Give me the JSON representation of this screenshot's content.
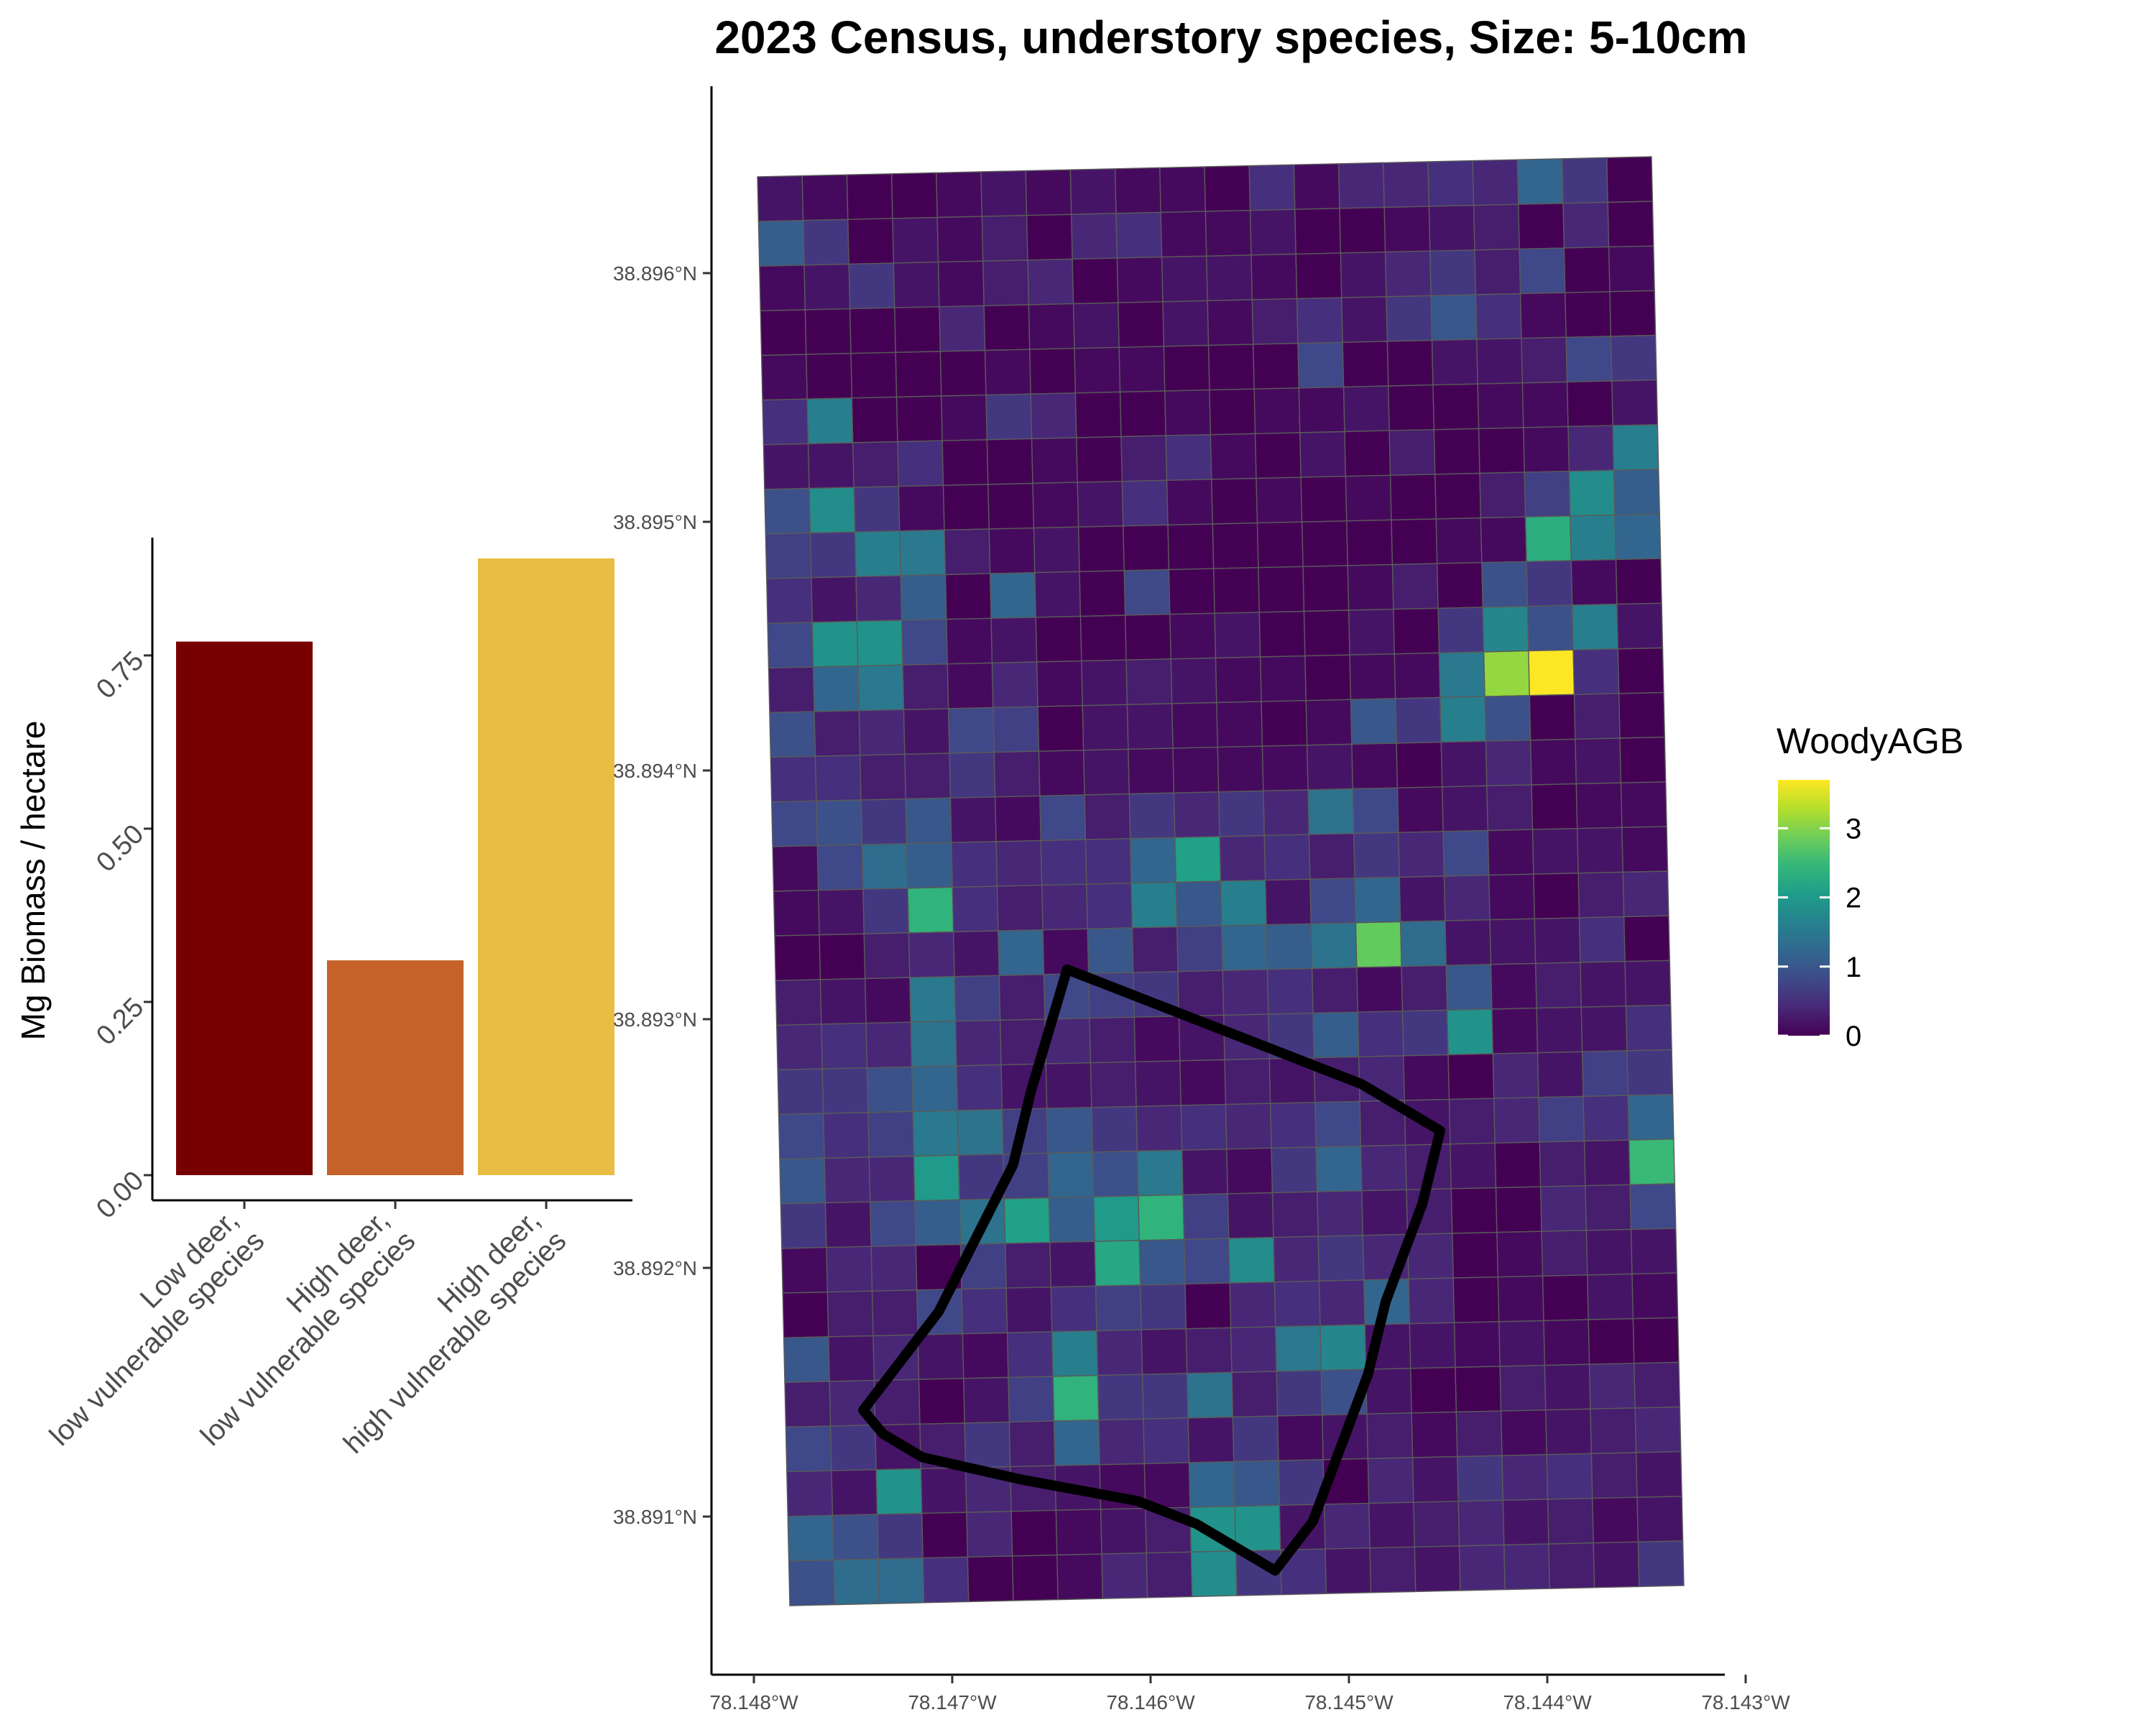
{
  "chart_data": [
    {
      "type": "bar",
      "title": "",
      "xlabel": "",
      "ylabel": "Mg Biomass / hectare",
      "ylim": [
        0,
        0.92
      ],
      "yticks": [
        "0.00",
        "0.25",
        "0.50",
        "0.75"
      ],
      "yticks_values": [
        0,
        0.25,
        0.5,
        0.75
      ],
      "categories": [
        {
          "line1": "Low deer,",
          "line2": "low vulnerable species",
          "color": "#770000",
          "value": 0.77
        },
        {
          "line1": "High deer,",
          "line2": "low vulnerable species",
          "color": "#c4622a",
          "value": 0.31
        },
        {
          "line1": "High deer,",
          "line2": "high vulnerable species",
          "color": "#e8bd42",
          "value": 0.89
        }
      ]
    },
    {
      "type": "heatmap",
      "title": "2023 Census, understory species, Size: 5-10cm",
      "x_tick_labels": [
        "78.148°W",
        "78.147°W",
        "78.146°W",
        "78.145°W",
        "78.144°W",
        "78.143°W"
      ],
      "x_tick_values": [
        -78.148,
        -78.147,
        -78.146,
        -78.145,
        -78.144,
        -78.143
      ],
      "y_tick_labels": [
        "38.896°N",
        "38.895°N",
        "38.894°N",
        "38.893°N",
        "38.892°N",
        "38.891°N"
      ],
      "y_tick_values": [
        38.896,
        38.895,
        38.894,
        38.893,
        38.892,
        38.891
      ],
      "legend": {
        "title": "WoodyAGB",
        "ticks": [
          "0",
          "1",
          "2",
          "3"
        ],
        "ticks_values": [
          0,
          1,
          2,
          3
        ],
        "range": [
          0,
          3.7
        ],
        "palette": "viridis",
        "placement": "right"
      },
      "grid": {
        "cols": 20,
        "rows": 32,
        "lon_range": [
          -78.1477,
          -78.1431
        ],
        "lat_range": [
          38.8905,
          38.8964
        ],
        "values": [
          [
            0.2,
            0.1,
            0,
            0,
            0.1,
            0.2,
            0.1,
            0.2,
            0.1,
            0.1,
            0,
            0.5,
            0.1,
            0.4,
            0.4,
            0.5,
            0.4,
            1.2,
            0.6,
            0
          ],
          [
            1.1,
            0.6,
            0,
            0.2,
            0.1,
            0.3,
            0,
            0.4,
            0.5,
            0.1,
            0.1,
            0.2,
            0,
            0,
            0.1,
            0.2,
            0.3,
            0,
            0.4,
            0
          ],
          [
            0.1,
            0.2,
            0.6,
            0.2,
            0.1,
            0.3,
            0.4,
            0,
            0.1,
            0.2,
            0.2,
            0.1,
            0,
            0.2,
            0.4,
            0.6,
            0.3,
            0.8,
            0,
            0.1
          ],
          [
            0,
            0,
            0,
            0,
            0.4,
            0,
            0.1,
            0.2,
            0,
            0.2,
            0.1,
            0.3,
            0.5,
            0.2,
            0.6,
            1.0,
            0.5,
            0.1,
            0,
            0
          ],
          [
            0.1,
            0,
            0,
            0,
            0,
            0.1,
            0,
            0.1,
            0.1,
            0,
            0,
            0,
            0.8,
            0,
            0,
            0.2,
            0.2,
            0.3,
            0.8,
            0.6
          ],
          [
            0.5,
            1.6,
            0,
            0,
            0.1,
            0.6,
            0.4,
            0,
            0,
            0.1,
            0,
            0.1,
            0.1,
            0.2,
            0,
            0,
            0.1,
            0.1,
            0,
            0.2
          ],
          [
            0.2,
            0.2,
            0.3,
            0.5,
            0,
            0,
            0.1,
            0,
            0.3,
            0.5,
            0.1,
            0,
            0.2,
            0,
            0.3,
            0,
            0,
            0.1,
            0.4,
            1.6
          ],
          [
            0.9,
            1.8,
            0.6,
            0.1,
            0,
            0,
            0.1,
            0.2,
            0.5,
            0.1,
            0,
            0.1,
            0,
            0.1,
            0,
            0,
            0.3,
            0.7,
            1.8,
            1.1
          ],
          [
            0.7,
            0.6,
            1.6,
            1.5,
            0.3,
            0.1,
            0.2,
            0,
            0,
            0,
            0,
            0,
            0,
            0,
            0,
            0.1,
            0.1,
            2.3,
            1.6,
            1.2
          ],
          [
            0.5,
            0.2,
            0.4,
            1.1,
            0,
            1.2,
            0.2,
            0,
            0.8,
            0,
            0,
            0,
            0,
            0.1,
            0.3,
            0,
            0.9,
            0.6,
            0.1,
            0
          ],
          [
            0.8,
            1.9,
            1.9,
            0.8,
            0.1,
            0.2,
            0,
            0,
            0,
            0.1,
            0.2,
            0,
            0,
            0.2,
            0,
            0.6,
            1.7,
            0.9,
            1.6,
            0.2
          ],
          [
            0.3,
            1.2,
            1.5,
            0.3,
            0.1,
            0.4,
            0.1,
            0.2,
            0.3,
            0.2,
            0.1,
            0.1,
            0,
            0.1,
            0.1,
            1.5,
            3.1,
            3.7,
            0.5,
            0
          ],
          [
            0.9,
            0.3,
            0.4,
            0.2,
            0.8,
            0.7,
            0,
            0.2,
            0.2,
            0.1,
            0.1,
            0,
            0.1,
            1.0,
            0.6,
            1.6,
            0.9,
            0,
            0.3,
            0
          ],
          [
            0.5,
            0.5,
            0.3,
            0.3,
            0.6,
            0.3,
            0.1,
            0.2,
            0.1,
            0.1,
            0.1,
            0.1,
            0.2,
            0.1,
            0,
            0.2,
            0.4,
            0.1,
            0.2,
            0
          ],
          [
            0.8,
            0.9,
            0.6,
            1.0,
            0.2,
            0.1,
            0.8,
            0.3,
            0.6,
            0.4,
            0.6,
            0.4,
            1.4,
            0.8,
            0.1,
            0.2,
            0.3,
            0,
            0.1,
            0.1
          ],
          [
            0.1,
            0.8,
            1.3,
            1.1,
            0.5,
            0.4,
            0.5,
            0.5,
            1.2,
            2.1,
            0.4,
            0.5,
            0.3,
            0.6,
            0.4,
            0.8,
            0.1,
            0.2,
            0.2,
            0.1
          ],
          [
            0.1,
            0.2,
            0.6,
            2.4,
            0.5,
            0.3,
            0.4,
            0.5,
            1.6,
            1.0,
            1.6,
            0.2,
            0.8,
            1.2,
            0.2,
            0.4,
            0.1,
            0,
            0.3,
            0.4
          ],
          [
            0,
            0,
            0.3,
            0.4,
            0.2,
            1.2,
            0.1,
            1.0,
            0.3,
            0.7,
            1.2,
            1.1,
            1.4,
            2.8,
            1.3,
            0.2,
            0.2,
            0.2,
            0.5,
            0
          ],
          [
            0.3,
            0.2,
            0.1,
            1.5,
            0.7,
            0.3,
            0.8,
            0.7,
            0.6,
            0.3,
            0.4,
            0.5,
            0.3,
            0.1,
            0.3,
            1.0,
            0.1,
            0.3,
            0.2,
            0.2
          ],
          [
            0.4,
            0.5,
            0.4,
            1.4,
            0.4,
            0.3,
            0.4,
            0.3,
            0.1,
            0.2,
            0.4,
            0.6,
            1.1,
            0.5,
            0.6,
            1.9,
            0.1,
            0.2,
            0.2,
            0.5
          ],
          [
            0.6,
            0.6,
            0.9,
            1.2,
            0.5,
            0.2,
            0.2,
            0.3,
            0.2,
            0.1,
            0.3,
            0.2,
            0.3,
            0.4,
            0.1,
            0,
            0.4,
            0.2,
            0.7,
            0.6
          ],
          [
            0.8,
            0.5,
            0.7,
            1.5,
            1.4,
            0.7,
            1.0,
            0.6,
            0.4,
            0.5,
            0.4,
            0.5,
            0.8,
            0.3,
            0.2,
            0.3,
            0.4,
            0.7,
            0.5,
            1.2
          ],
          [
            1.0,
            0.4,
            0.4,
            2.0,
            0.6,
            0.7,
            1.2,
            0.9,
            1.5,
            0.2,
            0.1,
            0.6,
            1.2,
            0.4,
            0.3,
            0.2,
            0,
            0.3,
            0.2,
            2.5
          ],
          [
            0.6,
            0.2,
            0.8,
            1.1,
            1.4,
            2.1,
            1.1,
            2.0,
            2.4,
            0.7,
            0.2,
            0.3,
            0.4,
            0.2,
            0.3,
            0,
            0,
            0.4,
            0.3,
            0.8
          ],
          [
            0.1,
            0.4,
            0.4,
            0,
            0.7,
            0.3,
            0.2,
            2.2,
            1.0,
            0.8,
            1.8,
            0.4,
            0.6,
            0.4,
            0.4,
            0,
            0.1,
            0.3,
            0.2,
            0.2
          ],
          [
            0,
            0.3,
            0.3,
            0.8,
            0.5,
            0.2,
            0.5,
            0.7,
            0.6,
            0,
            0.4,
            0.5,
            0.4,
            1.2,
            0.4,
            0,
            0.1,
            0,
            0.2,
            0.1
          ],
          [
            1.0,
            0.2,
            0.4,
            0.2,
            0.1,
            0.5,
            1.6,
            0.4,
            0.2,
            0.3,
            0.4,
            1.5,
            1.7,
            0.2,
            0.2,
            0.1,
            0.2,
            0.1,
            0,
            0
          ],
          [
            0.3,
            0.4,
            0.3,
            0,
            0.2,
            0.7,
            2.4,
            0.6,
            0.6,
            1.4,
            0.3,
            0.6,
            0.9,
            0.2,
            0,
            0,
            0.3,
            0.2,
            0.4,
            0.3
          ],
          [
            0.8,
            0.6,
            0.2,
            0.3,
            0.6,
            0.3,
            1.2,
            0.4,
            0.5,
            0.2,
            0.6,
            0.1,
            0.2,
            0.3,
            0.1,
            0.3,
            0.1,
            0.2,
            0.3,
            0.4
          ],
          [
            0.4,
            0.2,
            1.9,
            0.2,
            0.4,
            0.3,
            0.2,
            0.1,
            0.1,
            1.2,
            1.0,
            0.6,
            0,
            0.4,
            0.2,
            0.6,
            0.4,
            0.5,
            0.3,
            0.2
          ],
          [
            1.2,
            0.9,
            0.6,
            0,
            0.4,
            0,
            0.1,
            0.2,
            0.3,
            1.9,
            1.9,
            0.2,
            0.4,
            0.2,
            0.3,
            0.4,
            0.2,
            0.3,
            0.1,
            0.2
          ],
          [
            0.9,
            1.3,
            1.3,
            0.5,
            0,
            0,
            0.1,
            0.4,
            0.3,
            1.8,
            0.6,
            0.5,
            0.2,
            0.3,
            0.2,
            0.4,
            0.4,
            0.3,
            0.2,
            0.6
          ]
        ]
      },
      "outline": [
        [
          -78.1462,
          38.8931
        ],
        [
          -78.1456,
          38.8929
        ],
        [
          -78.145,
          38.8927
        ],
        [
          -78.1447,
          38.8926
        ],
        [
          -78.1443,
          38.8924
        ],
        [
          -78.1443,
          38.8924
        ],
        [
          -78.1444,
          38.8921
        ],
        [
          -78.1445,
          38.8919
        ],
        [
          -78.1446,
          38.8917
        ],
        [
          -78.1447,
          38.8914
        ],
        [
          -78.1449,
          38.891
        ],
        [
          -78.145,
          38.8908
        ],
        [
          -78.1452,
          38.8906
        ],
        [
          -78.1454,
          38.8907
        ],
        [
          -78.1456,
          38.8908
        ],
        [
          -78.1459,
          38.8909
        ],
        [
          -78.1465,
          38.891
        ],
        [
          -78.147,
          38.8911
        ],
        [
          -78.1472,
          38.8912
        ],
        [
          -78.1473,
          38.8913
        ],
        [
          -78.1471,
          38.8915
        ],
        [
          -78.1469,
          38.8917
        ],
        [
          -78.1467,
          38.892
        ],
        [
          -78.1465,
          38.8923
        ],
        [
          -78.1464,
          38.8926
        ],
        [
          -78.1462,
          38.8931
        ]
      ]
    }
  ]
}
